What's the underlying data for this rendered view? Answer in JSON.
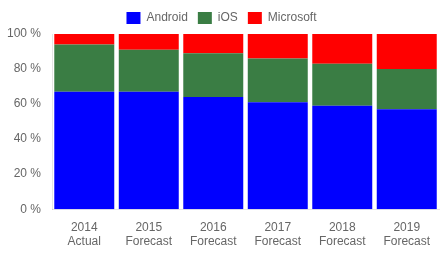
{
  "chart_data": {
    "type": "bar",
    "stacked": true,
    "categories": [
      "2014\nActual",
      "2015\nForecast",
      "2016\nForecast",
      "2017\nForecast",
      "2018\nForecast",
      "2019\nForecast"
    ],
    "series": [
      {
        "name": "Android",
        "color": "#0000FF",
        "values": [
          67,
          67,
          64,
          61,
          59,
          57
        ]
      },
      {
        "name": "iOS",
        "color": "#3A7D44",
        "values": [
          27,
          24,
          25,
          25,
          24,
          23
        ]
      },
      {
        "name": "Microsoft",
        "color": "#FF0000",
        "values": [
          6,
          9,
          11,
          14,
          17,
          20
        ]
      }
    ],
    "ylim": [
      0,
      100
    ],
    "yticks": [
      {
        "value": 0,
        "label": "0 %"
      },
      {
        "value": 20,
        "label": "20 %"
      },
      {
        "value": 40,
        "label": "40 %"
      },
      {
        "value": 60,
        "label": "60 %"
      },
      {
        "value": 80,
        "label": "80 %"
      },
      {
        "value": 100,
        "label": "100 %"
      }
    ],
    "grid": false,
    "legend": "top"
  }
}
